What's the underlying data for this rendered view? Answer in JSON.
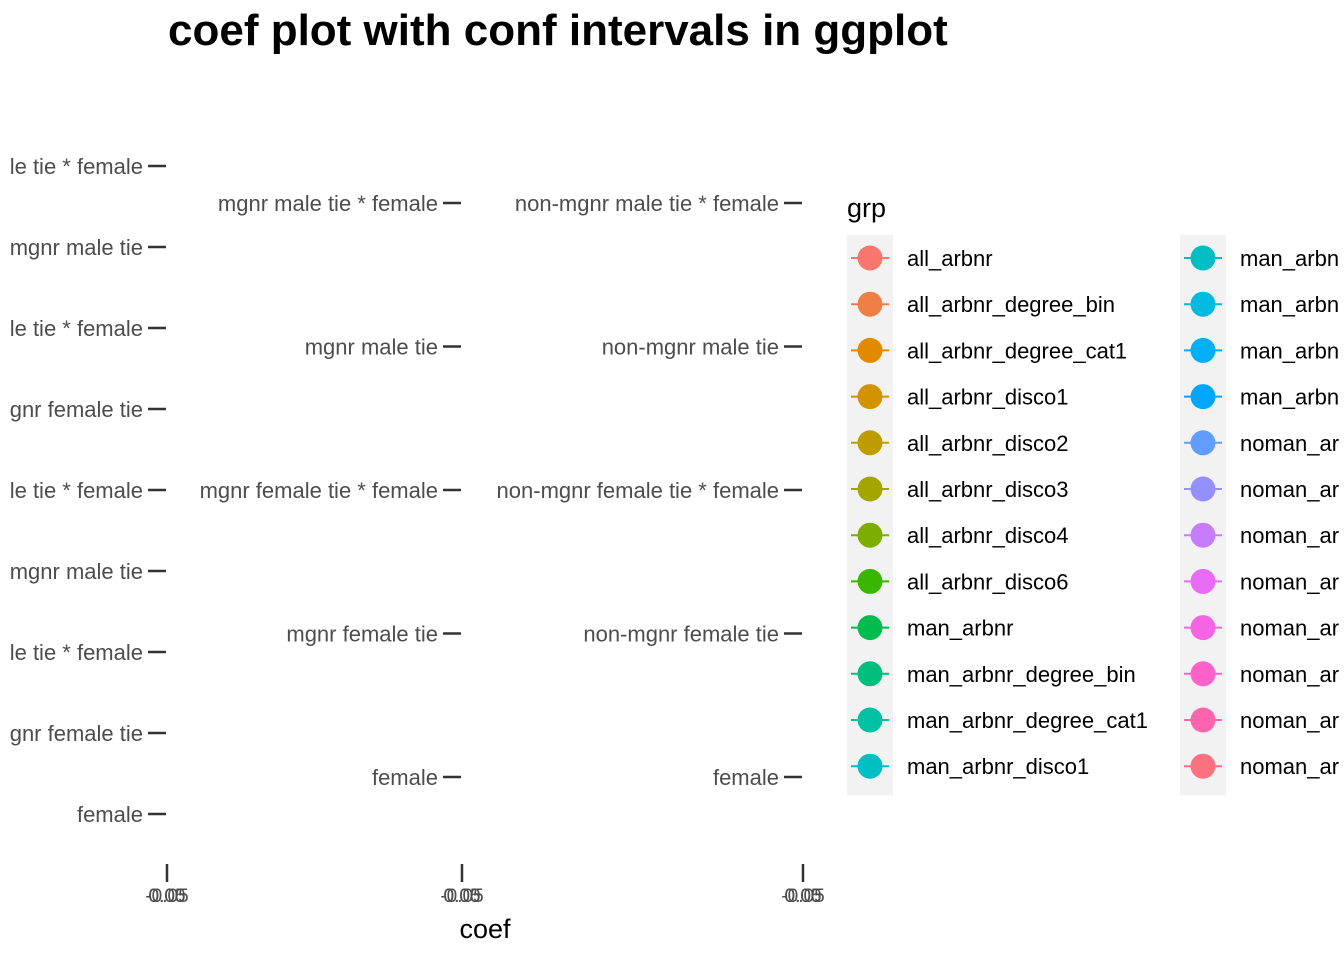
{
  "chart_data": {
    "type": "scatter",
    "title": "coef plot with conf intervals in ggplot",
    "xlabel": "coef",
    "ylabel": "",
    "grid": false,
    "legend_position": "right",
    "panels": [
      {
        "y_categories": [
          "le tie * female",
          "mgnr male tie",
          "le tie * female",
          "gnr female tie",
          "le tie * female",
          "mgnr male tie",
          "le tie * female",
          "gnr female tie",
          "female"
        ],
        "x_tick_labels": [
          "-0.05",
          "0.00",
          "0.05"
        ]
      },
      {
        "y_categories": [
          "mgnr male tie * female",
          "mgnr male tie",
          "mgnr female tie * female",
          "mgnr female tie",
          "female"
        ],
        "x_tick_labels": [
          "-0.05",
          "0.00",
          "0.05"
        ]
      },
      {
        "y_categories": [
          "non-mgnr male tie * female",
          "non-mgnr male tie",
          "non-mgnr female tie * female",
          "non-mgnr female tie",
          "female"
        ],
        "x_tick_labels": [
          "-0.05",
          "0.00",
          "0.05"
        ]
      }
    ],
    "legend": {
      "title": "grp",
      "columns": [
        [
          {
            "label": "all_arbnr",
            "color": "#F8766D"
          },
          {
            "label": "all_arbnr_degree_bin",
            "color": "#F07F47"
          },
          {
            "label": "all_arbnr_degree_cat1",
            "color": "#E38900"
          },
          {
            "label": "all_arbnr_disco1",
            "color": "#D39200"
          },
          {
            "label": "all_arbnr_disco2",
            "color": "#BE9C00"
          },
          {
            "label": "all_arbnr_disco3",
            "color": "#A3A500"
          },
          {
            "label": "all_arbnr_disco4",
            "color": "#7CAE00"
          },
          {
            "label": "all_arbnr_disco6",
            "color": "#39B600"
          },
          {
            "label": "man_arbnr",
            "color": "#00BB4E"
          },
          {
            "label": "man_arbnr_degree_bin",
            "color": "#00BF7D"
          },
          {
            "label": "man_arbnr_degree_cat1",
            "color": "#00C1A3"
          },
          {
            "label": "man_arbnr_disco1",
            "color": "#00BFC4"
          }
        ],
        [
          {
            "label": "man_arbn",
            "color": "#00BFC4"
          },
          {
            "label": "man_arbn",
            "color": "#00BAE0"
          },
          {
            "label": "man_arbn",
            "color": "#00B0F6"
          },
          {
            "label": "man_arbn",
            "color": "#00A5FF"
          },
          {
            "label": "noman_ar",
            "color": "#619CFF"
          },
          {
            "label": "noman_ar",
            "color": "#9590FF"
          },
          {
            "label": "noman_ar",
            "color": "#C77CFF"
          },
          {
            "label": "noman_ar",
            "color": "#E76BF3"
          },
          {
            "label": "noman_ar",
            "color": "#F564E3"
          },
          {
            "label": "noman_ar",
            "color": "#FF61C9"
          },
          {
            "label": "noman_ar",
            "color": "#FF65AC"
          },
          {
            "label": "noman_ar",
            "color": "#FC717F"
          }
        ]
      ]
    }
  }
}
